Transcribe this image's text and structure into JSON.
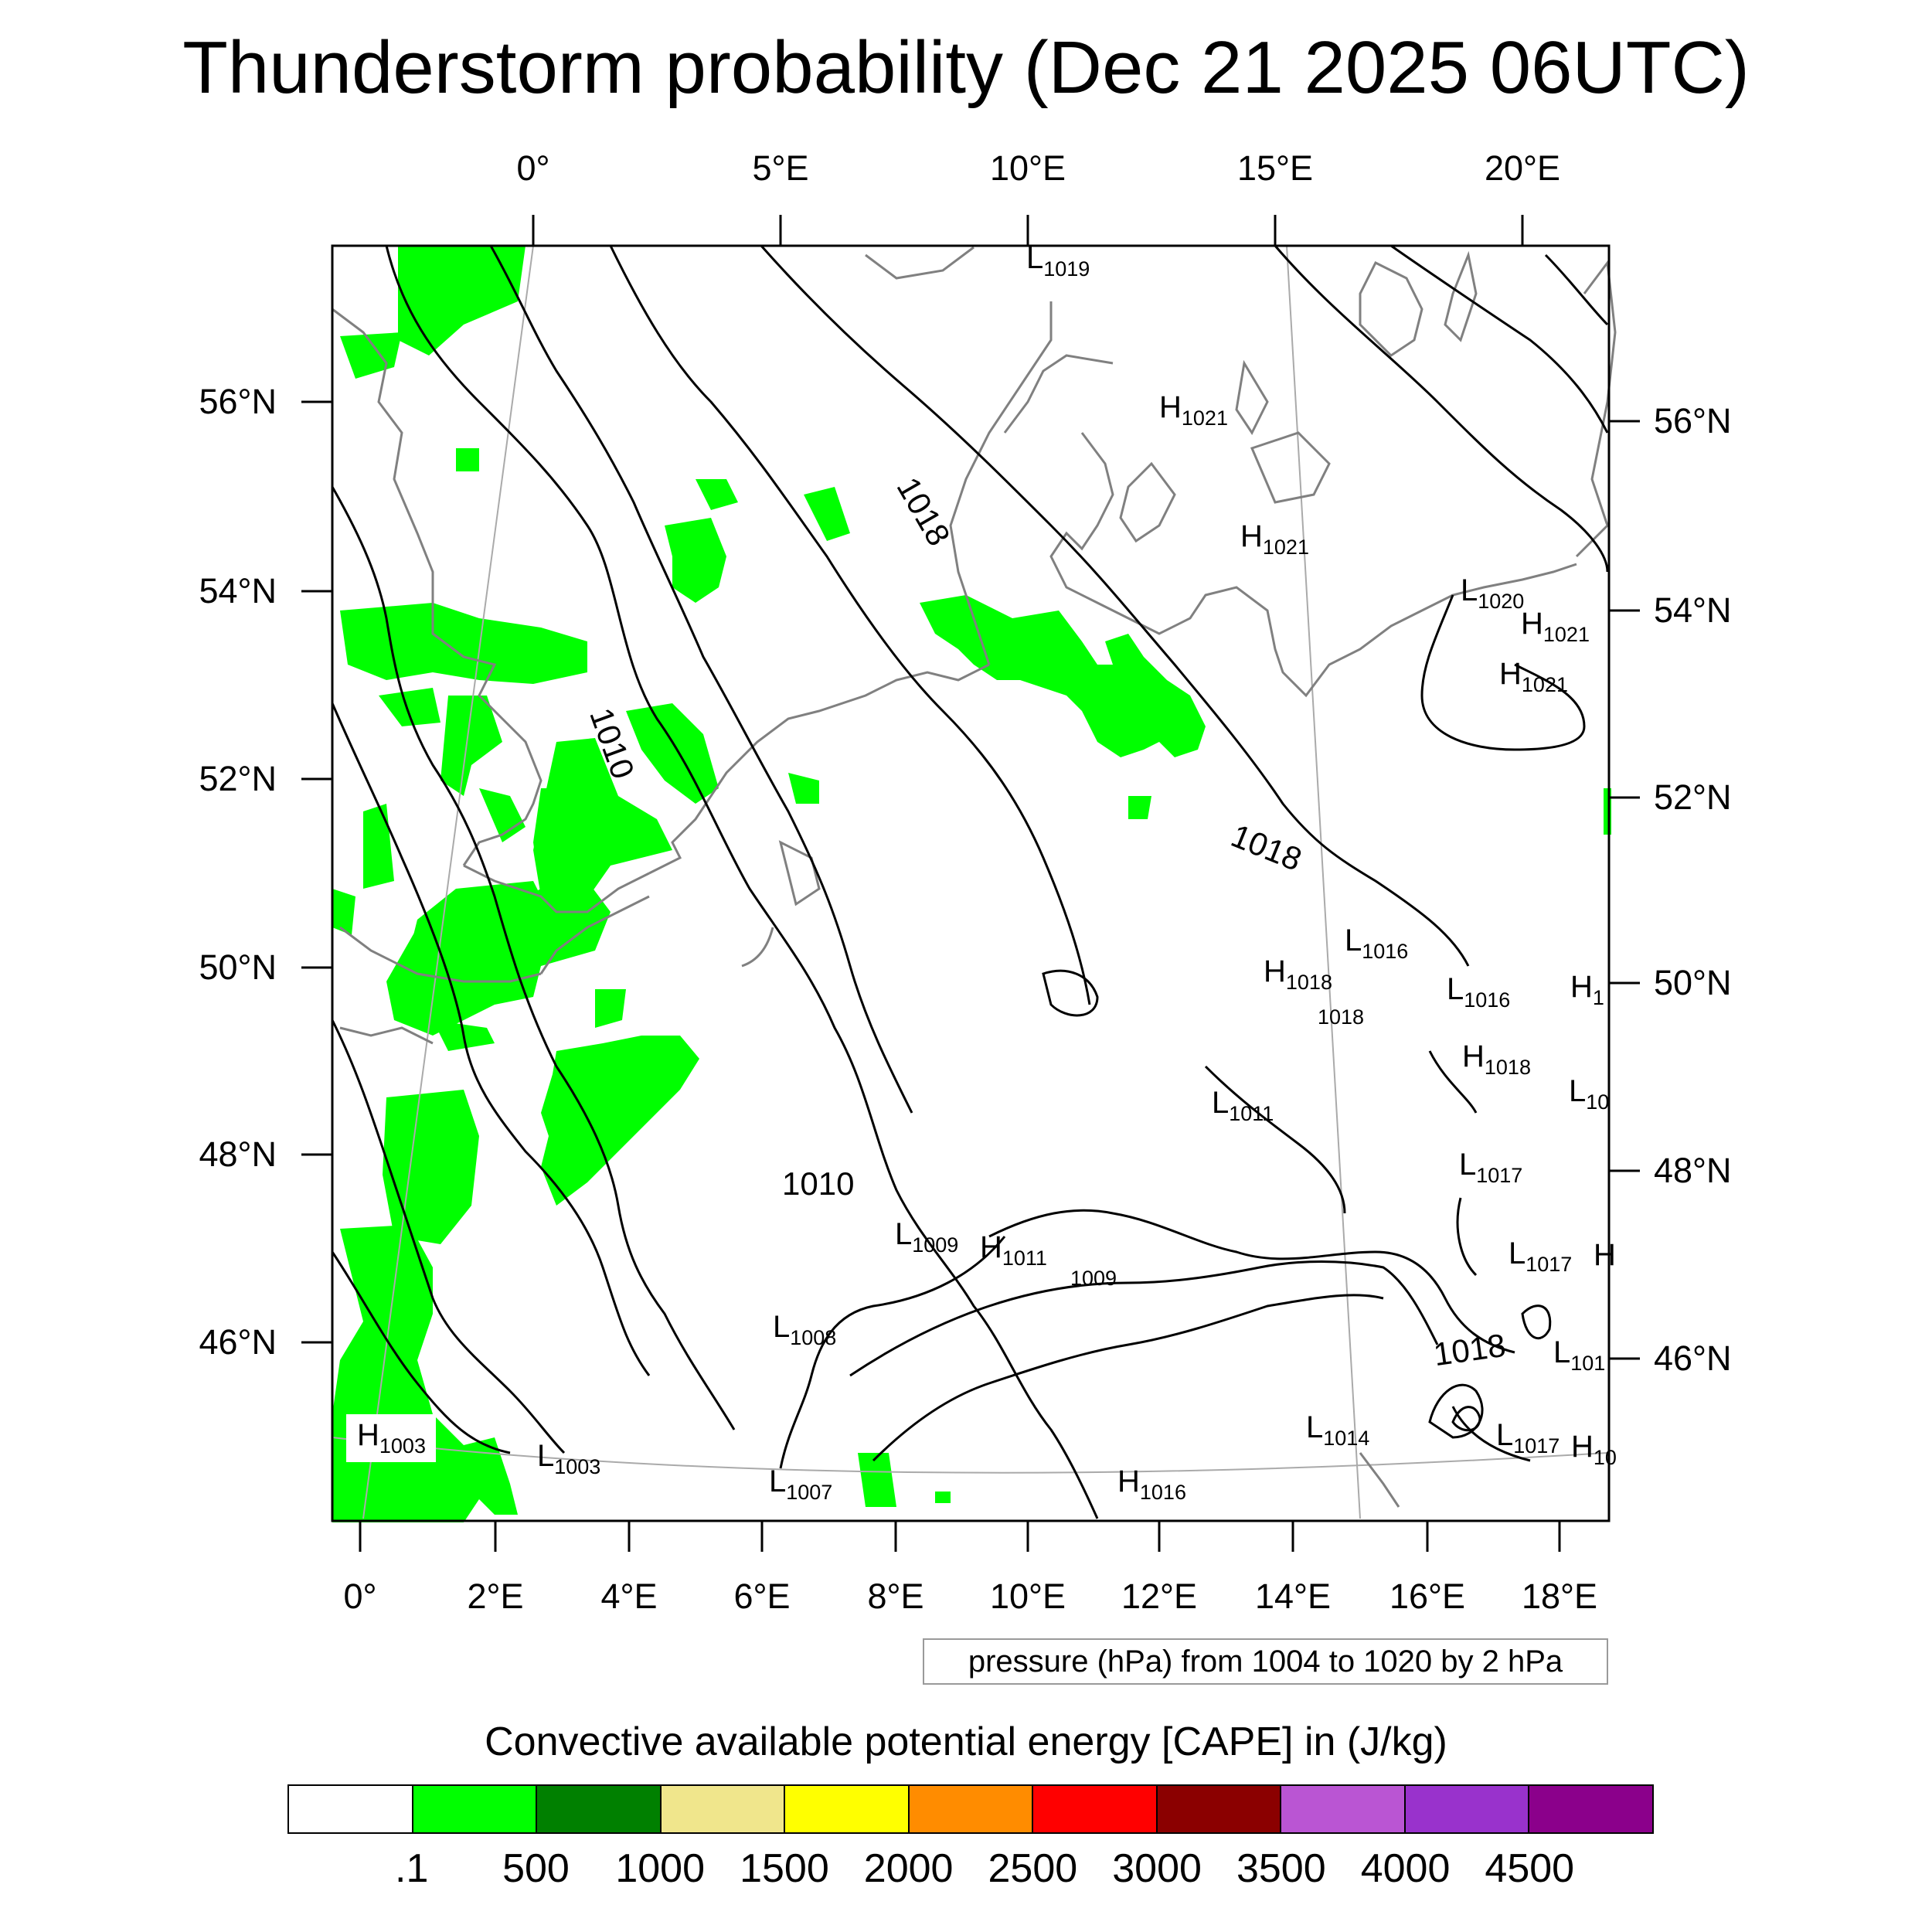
{
  "title": "Thunderstorm probability (Dec 21 2025 06UTC)",
  "map": {
    "top_lon_labels": [
      "0°",
      "5°E",
      "10°E",
      "15°E",
      "20°E"
    ],
    "bottom_lon_labels": [
      "0°",
      "2°E",
      "4°E",
      "6°E",
      "8°E",
      "10°E",
      "12°E",
      "14°E",
      "16°E",
      "18°E"
    ],
    "left_lat_labels": [
      "56°N",
      "54°N",
      "52°N",
      "50°N",
      "48°N",
      "46°N"
    ],
    "right_lat_labels": [
      "56°N",
      "54°N",
      "52°N",
      "50°N",
      "48°N",
      "46°N"
    ],
    "contour_labels": [
      "1018",
      "1010",
      "1018",
      "1010",
      "1018"
    ],
    "pressure_centers": [
      {
        "type": "L",
        "value": "1019"
      },
      {
        "type": "H",
        "value": "1021"
      },
      {
        "type": "H",
        "value": "1021"
      },
      {
        "type": "L",
        "value": "1020"
      },
      {
        "type": "H",
        "value": "1021"
      },
      {
        "type": "H",
        "value": "1021"
      },
      {
        "type": "L",
        "value": "1016"
      },
      {
        "type": "H",
        "value": "1018"
      },
      {
        "type": "",
        "value": "1018"
      },
      {
        "type": "L",
        "value": "1016"
      },
      {
        "type": "H",
        "value": "1"
      },
      {
        "type": "H",
        "value": "1018"
      },
      {
        "type": "L",
        "value": "1011"
      },
      {
        "type": "L",
        "value": "10"
      },
      {
        "type": "L",
        "value": "1017"
      },
      {
        "type": "L",
        "value": "1009"
      },
      {
        "type": "H",
        "value": "1011"
      },
      {
        "type": "",
        "value": "1009"
      },
      {
        "type": "L",
        "value": "1017"
      },
      {
        "type": "H",
        "value": ""
      },
      {
        "type": "L",
        "value": "1008"
      },
      {
        "type": "L",
        "value": "101"
      },
      {
        "type": "H",
        "value": "1003"
      },
      {
        "type": "L",
        "value": "1003"
      },
      {
        "type": "L",
        "value": "1014"
      },
      {
        "type": "L",
        "value": "1017"
      },
      {
        "type": "H",
        "value": "10"
      },
      {
        "type": "L",
        "value": "1007"
      },
      {
        "type": "H",
        "value": "1016"
      }
    ]
  },
  "contour_info": "pressure (hPa) from 1004 to 1020 by 2 hPa",
  "colorbar": {
    "title": "Convective available potential energy [CAPE] in (J/kg)",
    "colors": [
      "#ffffff",
      "#00ff00",
      "#008000",
      "#f0e68c",
      "#ffff00",
      "#ff8c00",
      "#ff0000",
      "#8b0000",
      "#ba55d3",
      "#9932cc",
      "#8b008b"
    ],
    "labels": [
      ".1",
      "500",
      "1000",
      "1500",
      "2000",
      "2500",
      "3000",
      "3500",
      "4000",
      "4500"
    ]
  },
  "colors": {
    "cape_low": "#00ff00",
    "isobar": "#000000",
    "coastline": "#808080",
    "graticule": "#aaaaaa"
  }
}
